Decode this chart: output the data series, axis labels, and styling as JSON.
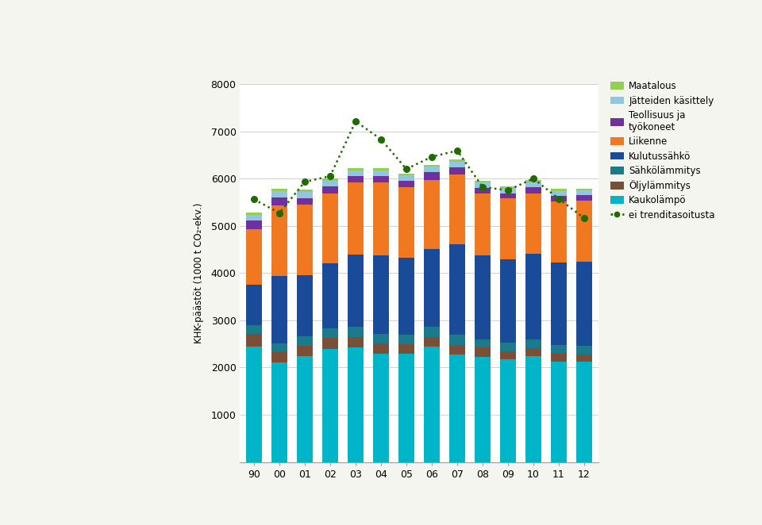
{
  "years": [
    "90",
    "00",
    "01",
    "02",
    "03",
    "04",
    "05",
    "06",
    "07",
    "08",
    "09",
    "10",
    "11",
    "12"
  ],
  "segments": {
    "Kaukolämpö": {
      "color": "#00B5C8",
      "values": [
        2450,
        2100,
        2250,
        2400,
        2420,
        2300,
        2300,
        2450,
        2280,
        2230,
        2180,
        2240,
        2130,
        2130
      ]
    },
    "Öljylämmitys": {
      "color": "#7B4F35",
      "values": [
        260,
        230,
        210,
        220,
        230,
        210,
        200,
        200,
        200,
        190,
        170,
        170,
        160,
        150
      ]
    },
    "Sähkölämmitys": {
      "color": "#1B7A8C",
      "values": [
        180,
        175,
        200,
        210,
        215,
        205,
        200,
        215,
        215,
        175,
        175,
        190,
        180,
        175
      ]
    },
    "Kulutussähkö": {
      "color": "#1A4B99",
      "values": [
        870,
        1430,
        1290,
        1380,
        1530,
        1660,
        1630,
        1640,
        1910,
        1780,
        1760,
        1810,
        1760,
        1780
      ]
    },
    "Liikenne": {
      "color": "#F07820",
      "values": [
        1160,
        1500,
        1490,
        1480,
        1520,
        1540,
        1480,
        1470,
        1480,
        1300,
        1290,
        1280,
        1280,
        1290
      ]
    },
    "Teollisuus ja työkoneet": {
      "color": "#7030A0",
      "values": [
        190,
        165,
        145,
        145,
        145,
        145,
        145,
        155,
        155,
        125,
        115,
        125,
        120,
        120
      ]
    },
    "Jätteiden käsittely": {
      "color": "#92C5DE",
      "values": [
        120,
        135,
        135,
        115,
        110,
        110,
        110,
        115,
        115,
        110,
        100,
        100,
        100,
        100
      ]
    },
    "Maatalous": {
      "color": "#92D050",
      "values": [
        45,
        45,
        45,
        45,
        45,
        45,
        45,
        45,
        45,
        45,
        45,
        45,
        45,
        45
      ]
    }
  },
  "trend_values": [
    5560,
    5270,
    5930,
    6050,
    7210,
    6830,
    6200,
    6460,
    6590,
    5820,
    5750,
    6000,
    5570,
    5160
  ],
  "trend_color": "#1F6B00",
  "ylabel": "KHK-päästöt (1000 t CO₂-ekv.)",
  "ylim": [
    0,
    8000
  ],
  "yticks": [
    0,
    1000,
    2000,
    3000,
    4000,
    5000,
    6000,
    7000,
    8000
  ],
  "bar_width": 0.6,
  "background_color": "#f5f5f0",
  "chart_bg": "#ffffff",
  "grid_color": "#d0d0d0"
}
